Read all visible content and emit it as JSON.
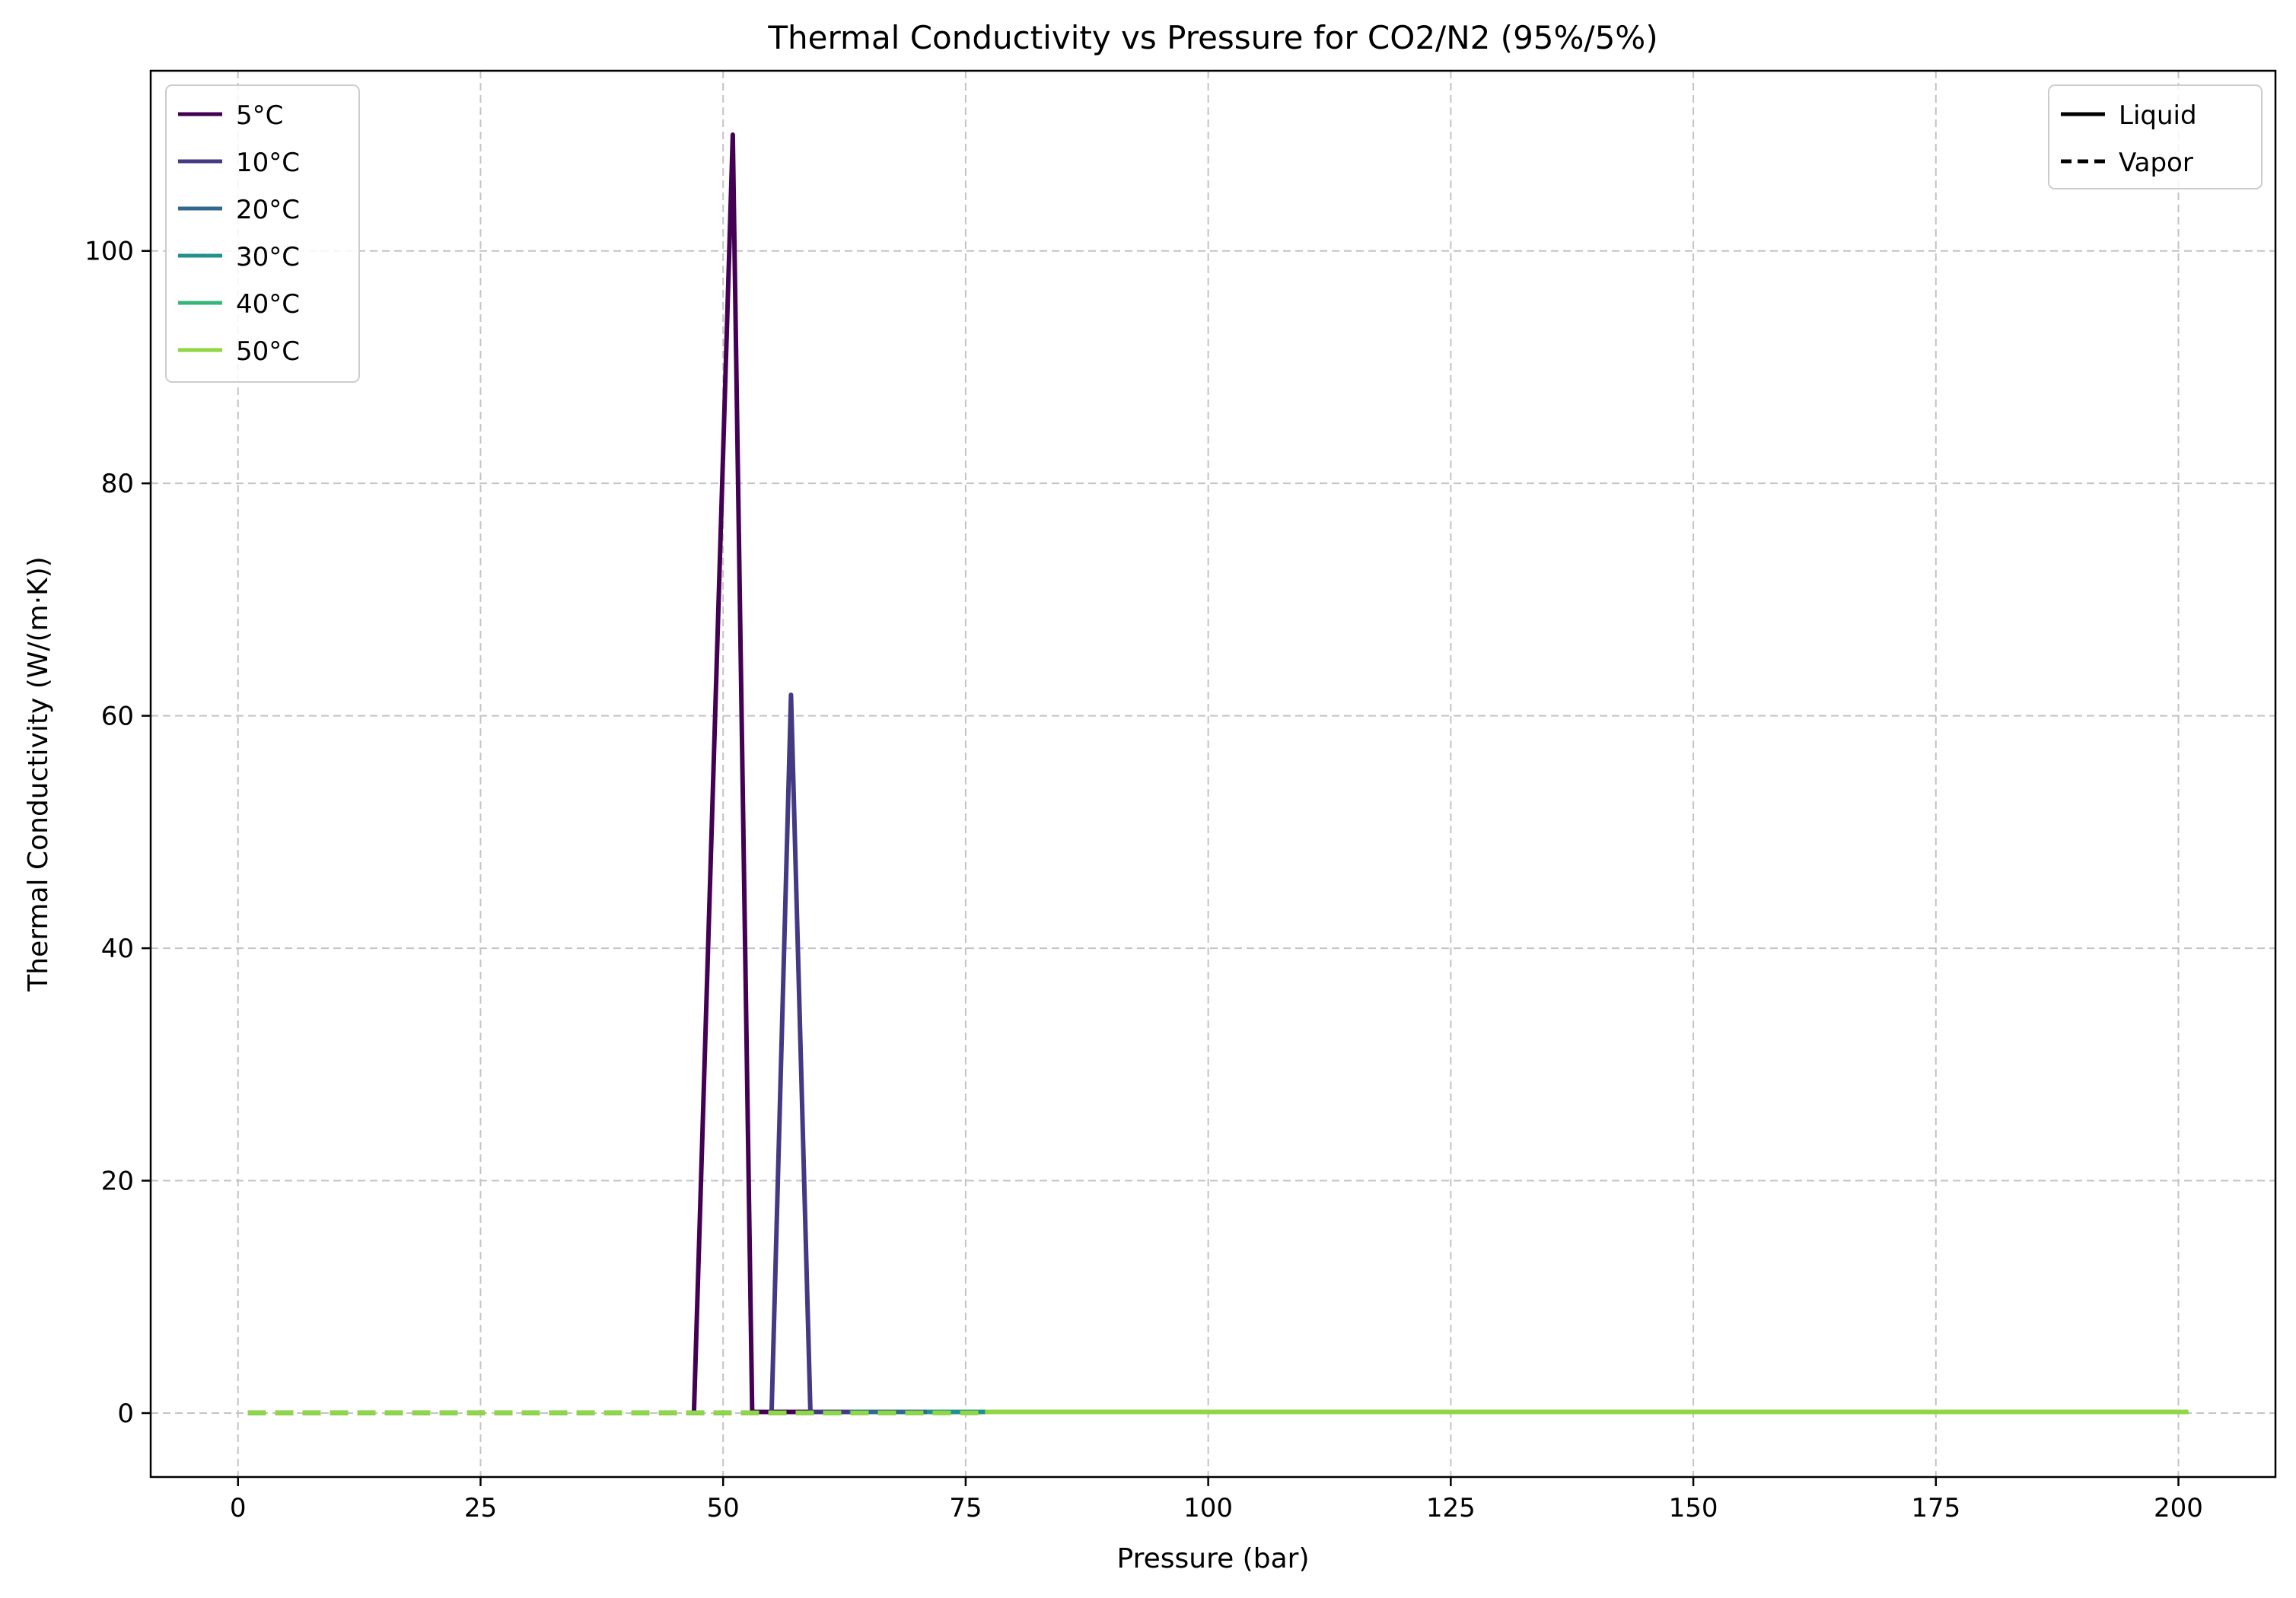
{
  "chart_data": {
    "type": "line",
    "title": "Thermal Conductivity vs Pressure for CO2/N2 (95%/5%)",
    "xlabel": "Pressure (bar)",
    "ylabel": "Thermal Conductivity (W/(m·K))",
    "xlim": [
      -9,
      210
    ],
    "ylim": [
      -5.5,
      115.5
    ],
    "xticks": [
      0,
      25,
      50,
      75,
      100,
      125,
      150,
      175,
      200
    ],
    "yticks": [
      0,
      20,
      40,
      60,
      80,
      100
    ],
    "grid": true,
    "legend_temperatures": {
      "placement": "top-left",
      "entries": [
        {
          "label": "5°C",
          "color": "#440154"
        },
        {
          "label": "10°C",
          "color": "#443983"
        },
        {
          "label": "20°C",
          "color": "#31688e"
        },
        {
          "label": "30°C",
          "color": "#21918c"
        },
        {
          "label": "40°C",
          "color": "#35b779"
        },
        {
          "label": "50°C",
          "color": "#90d743"
        }
      ]
    },
    "legend_phase": {
      "placement": "top-right",
      "entries": [
        {
          "label": "Liquid",
          "style": "solid"
        },
        {
          "label": "Vapor",
          "style": "dashed"
        }
      ]
    },
    "series": [
      {
        "name": "5°C",
        "color": "#440154",
        "vapor_x": [
          1,
          47
        ],
        "vapor_y": [
          0.02,
          0.02
        ],
        "liquid_x": [
          47,
          51,
          53,
          201
        ],
        "liquid_y": [
          0.1,
          110,
          0.1,
          0.1
        ]
      },
      {
        "name": "10°C",
        "color": "#443983",
        "vapor_x": [
          1,
          55
        ],
        "vapor_y": [
          0.02,
          0.02
        ],
        "liquid_x": [
          55,
          57,
          59,
          201
        ],
        "liquid_y": [
          0.1,
          61.8,
          0.1,
          0.1
        ]
      },
      {
        "name": "20°C",
        "color": "#31688e",
        "vapor_x": [
          1,
          63
        ],
        "vapor_y": [
          0.02,
          0.02
        ],
        "liquid_x": [
          63,
          201
        ],
        "liquid_y": [
          0.1,
          0.1
        ]
      },
      {
        "name": "30°C",
        "color": "#21918c",
        "vapor_x": [
          1,
          71
        ],
        "vapor_y": [
          0.02,
          0.02
        ],
        "liquid_x": [
          71,
          201
        ],
        "liquid_y": [
          0.1,
          0.1
        ]
      },
      {
        "name": "40°C",
        "color": "#35b779",
        "vapor_x": [
          1,
          77
        ],
        "vapor_y": [
          0.02,
          0.02
        ],
        "liquid_x": [
          77,
          201
        ],
        "liquid_y": [
          0.1,
          0.1
        ]
      },
      {
        "name": "50°C",
        "color": "#90d743",
        "vapor_x": [
          1,
          77
        ],
        "vapor_y": [
          0.02,
          0.02
        ],
        "liquid_x": [
          77,
          201
        ],
        "liquid_y": [
          0.1,
          0.1
        ]
      }
    ]
  }
}
